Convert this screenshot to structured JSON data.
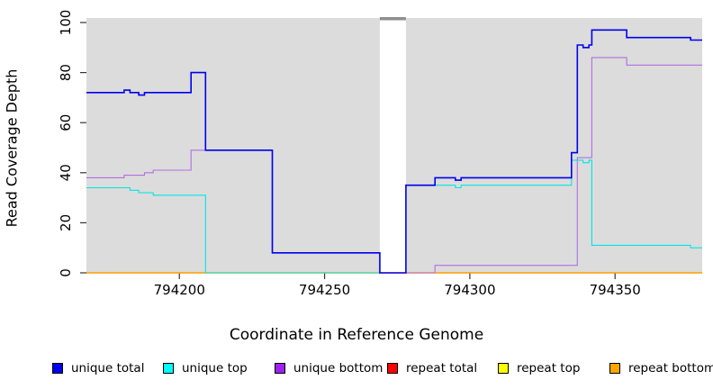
{
  "chart_data": {
    "type": "line",
    "title": "",
    "xlabel": "Coordinate in Reference Genome",
    "ylabel": "Read Coverage Depth",
    "xlim": [
      794168,
      794380
    ],
    "ylim": [
      0,
      100
    ],
    "x_ticks": [
      794200,
      794250,
      794300,
      794350
    ],
    "y_ticks": [
      0,
      20,
      40,
      60,
      80,
      100
    ],
    "grid": false,
    "legend_position": "bottom",
    "plot_background_color": "#dcdcdc",
    "background_regions": [
      [
        794168,
        794269
      ],
      [
        794278,
        794380
      ]
    ],
    "gap_region": {
      "from": 794269,
      "to": 794278,
      "marker_color": "#8f8f8f"
    },
    "series": [
      {
        "name": "unique total",
        "color": "#0000ee",
        "width": 1.6,
        "points": [
          [
            794168,
            72
          ],
          [
            794181,
            72
          ],
          [
            794181,
            73
          ],
          [
            794183,
            73
          ],
          [
            794183,
            72
          ],
          [
            794186,
            72
          ],
          [
            794186,
            71
          ],
          [
            794188,
            71
          ],
          [
            794188,
            72
          ],
          [
            794204,
            72
          ],
          [
            794204,
            80
          ],
          [
            794209,
            80
          ],
          [
            794209,
            49
          ],
          [
            794232,
            49
          ],
          [
            794232,
            8
          ],
          [
            794269,
            8
          ],
          [
            794269,
            0
          ],
          [
            794278,
            0
          ],
          [
            794278,
            35
          ],
          [
            794288,
            35
          ],
          [
            794288,
            38
          ],
          [
            794295,
            38
          ],
          [
            794295,
            37
          ],
          [
            794297,
            37
          ],
          [
            794297,
            38
          ],
          [
            794335,
            38
          ],
          [
            794335,
            48
          ],
          [
            794337,
            48
          ],
          [
            794337,
            91
          ],
          [
            794339,
            91
          ],
          [
            794339,
            90
          ],
          [
            794341,
            90
          ],
          [
            794341,
            91
          ],
          [
            794342,
            91
          ],
          [
            794342,
            97
          ],
          [
            794354,
            97
          ],
          [
            794354,
            94
          ],
          [
            794376,
            94
          ],
          [
            794376,
            93
          ],
          [
            794380,
            93
          ]
        ]
      },
      {
        "name": "unique top",
        "color": "#00e5e5",
        "width": 1.1,
        "points": [
          [
            794168,
            34
          ],
          [
            794183,
            34
          ],
          [
            794183,
            33
          ],
          [
            794186,
            33
          ],
          [
            794186,
            32
          ],
          [
            794191,
            32
          ],
          [
            794191,
            31
          ],
          [
            794209,
            31
          ],
          [
            794209,
            0
          ],
          [
            794278,
            0
          ],
          [
            794278,
            35
          ],
          [
            794295,
            35
          ],
          [
            794295,
            34
          ],
          [
            794297,
            34
          ],
          [
            794297,
            35
          ],
          [
            794335,
            35
          ],
          [
            794335,
            45
          ],
          [
            794339,
            45
          ],
          [
            794339,
            44
          ],
          [
            794341,
            44
          ],
          [
            794341,
            45
          ],
          [
            794342,
            45
          ],
          [
            794342,
            11
          ],
          [
            794376,
            11
          ],
          [
            794376,
            10
          ],
          [
            794380,
            10
          ]
        ]
      },
      {
        "name": "unique bottom",
        "color": "#b06fe0",
        "width": 1.1,
        "points": [
          [
            794168,
            38
          ],
          [
            794181,
            38
          ],
          [
            794181,
            39
          ],
          [
            794188,
            39
          ],
          [
            794188,
            40
          ],
          [
            794191,
            40
          ],
          [
            794191,
            41
          ],
          [
            794204,
            41
          ],
          [
            794204,
            49
          ],
          [
            794232,
            49
          ],
          [
            794232,
            8
          ],
          [
            794269,
            8
          ],
          [
            794269,
            0
          ],
          [
            794288,
            0
          ],
          [
            794288,
            3
          ],
          [
            794337,
            3
          ],
          [
            794337,
            46
          ],
          [
            794342,
            46
          ],
          [
            794342,
            86
          ],
          [
            794354,
            86
          ],
          [
            794354,
            83
          ],
          [
            794380,
            83
          ]
        ]
      },
      {
        "name": "repeat total",
        "color": "#e00000",
        "width": 1.1,
        "points": [
          [
            794168,
            0
          ],
          [
            794380,
            0
          ]
        ]
      },
      {
        "name": "repeat top",
        "color": "#f5f500",
        "width": 1.1,
        "points": [
          [
            794168,
            0
          ],
          [
            794380,
            0
          ]
        ]
      },
      {
        "name": "repeat bottom",
        "color": "#ff9d00",
        "width": 1.5,
        "points": [
          [
            794168,
            0
          ],
          [
            794380,
            0
          ]
        ]
      }
    ],
    "draw_order": [
      3,
      4,
      5,
      2,
      1,
      0
    ],
    "legend": [
      {
        "label": "unique total",
        "swatch_color": "#0000ee"
      },
      {
        "label": "unique top",
        "swatch_color": "#00ffff"
      },
      {
        "label": "unique bottom",
        "swatch_color": "#a020f0"
      },
      {
        "label": "repeat total",
        "swatch_color": "#ff0000"
      },
      {
        "label": "repeat top",
        "swatch_color": "#ffff00"
      },
      {
        "label": "repeat bottom",
        "swatch_color": "#ffa500"
      }
    ]
  }
}
